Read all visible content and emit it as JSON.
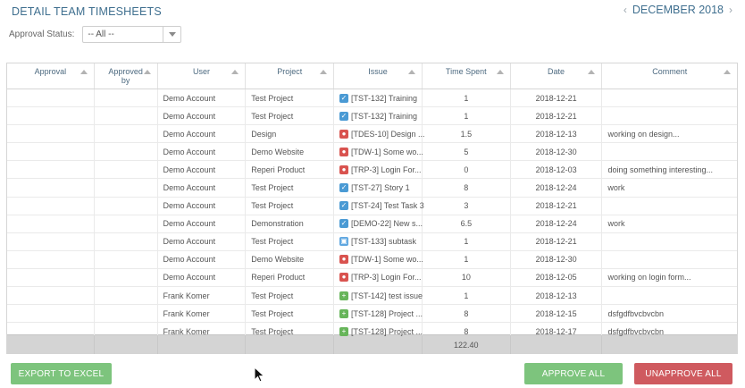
{
  "header": {
    "title": "DETAIL TEAM TIMESHEETS",
    "month": "DECEMBER 2018",
    "prev_icon": "chevron-left-icon",
    "next_icon": "chevron-right-icon"
  },
  "filter": {
    "label": "Approval Status:",
    "value": "-- All --"
  },
  "columns": [
    {
      "label": "Approval",
      "key": "approval"
    },
    {
      "label": "Approved by",
      "key": "approved_by"
    },
    {
      "label": "User",
      "key": "user"
    },
    {
      "label": "Project",
      "key": "project"
    },
    {
      "label": "Issue",
      "key": "issue"
    },
    {
      "label": "Time Spent",
      "key": "time"
    },
    {
      "label": "Date",
      "key": "date"
    },
    {
      "label": "Comment",
      "key": "comment"
    }
  ],
  "issue_type_colors": {
    "task": "#4a9ad4",
    "bug": "#d9534f",
    "subtask": "#5fa7e0",
    "story": "#67b55a"
  },
  "rows": [
    {
      "approval": "",
      "approved_by": "",
      "user": "Demo Account",
      "project": "Test Project",
      "issue_type": "task",
      "issue": "[TST-132] Training",
      "time": "1",
      "date": "2018-12-21",
      "comment": ""
    },
    {
      "approval": "",
      "approved_by": "",
      "user": "Demo Account",
      "project": "Test Project",
      "issue_type": "task",
      "issue": "[TST-132] Training",
      "time": "1",
      "date": "2018-12-21",
      "comment": ""
    },
    {
      "approval": "",
      "approved_by": "",
      "user": "Demo Account",
      "project": "Design",
      "issue_type": "bug",
      "issue": "[TDES-10] Design ...",
      "time": "1.5",
      "date": "2018-12-13",
      "comment": "working on design..."
    },
    {
      "approval": "",
      "approved_by": "",
      "user": "Demo Account",
      "project": "Demo Website",
      "issue_type": "bug",
      "issue": "[TDW-1] Some wo...",
      "time": "5",
      "date": "2018-12-30",
      "comment": ""
    },
    {
      "approval": "",
      "approved_by": "",
      "user": "Demo Account",
      "project": "Reperi Product",
      "issue_type": "bug",
      "issue": "[TRP-3] Login For...",
      "time": "0",
      "date": "2018-12-03",
      "comment": "doing something interesting..."
    },
    {
      "approval": "",
      "approved_by": "",
      "user": "Demo Account",
      "project": "Test Project",
      "issue_type": "task",
      "issue": "[TST-27] Story 1",
      "time": "8",
      "date": "2018-12-24",
      "comment": "work"
    },
    {
      "approval": "",
      "approved_by": "",
      "user": "Demo Account",
      "project": "Test Project",
      "issue_type": "task",
      "issue": "[TST-24] Test Task 3",
      "time": "3",
      "date": "2018-12-21",
      "comment": ""
    },
    {
      "approval": "",
      "approved_by": "",
      "user": "Demo Account",
      "project": "Demonstration",
      "issue_type": "task",
      "issue": "[DEMO-22] New s...",
      "time": "6.5",
      "date": "2018-12-24",
      "comment": "work"
    },
    {
      "approval": "",
      "approved_by": "",
      "user": "Demo Account",
      "project": "Test Project",
      "issue_type": "subtask",
      "issue": "[TST-133] subtask",
      "time": "1",
      "date": "2018-12-21",
      "comment": ""
    },
    {
      "approval": "",
      "approved_by": "",
      "user": "Demo Account",
      "project": "Demo Website",
      "issue_type": "bug",
      "issue": "[TDW-1] Some wo...",
      "time": "1",
      "date": "2018-12-30",
      "comment": ""
    },
    {
      "approval": "",
      "approved_by": "",
      "user": "Demo Account",
      "project": "Reperi Product",
      "issue_type": "bug",
      "issue": "[TRP-3] Login For...",
      "time": "10",
      "date": "2018-12-05",
      "comment": "working on login form..."
    },
    {
      "approval": "",
      "approved_by": "",
      "user": "Frank Komer",
      "project": "Test Project",
      "issue_type": "story",
      "issue": "[TST-142] test issue",
      "time": "1",
      "date": "2018-12-13",
      "comment": ""
    },
    {
      "approval": "",
      "approved_by": "",
      "user": "Frank Komer",
      "project": "Test Project",
      "issue_type": "story",
      "issue": "[TST-128] Project ...",
      "time": "8",
      "date": "2018-12-15",
      "comment": "dsfgdfbvcbvcbn"
    },
    {
      "approval": "",
      "approved_by": "",
      "user": "Frank Komer",
      "project": "Test Project",
      "issue_type": "story",
      "issue": "[TST-128] Project ...",
      "time": "8",
      "date": "2018-12-17",
      "comment": "dsfgdfbvcbvcbn"
    }
  ],
  "footer": {
    "total_time": "122.40"
  },
  "buttons": {
    "export": "EXPORT TO EXCEL",
    "approve": "APPROVE ALL",
    "unapprove": "UNAPPROVE ALL"
  }
}
